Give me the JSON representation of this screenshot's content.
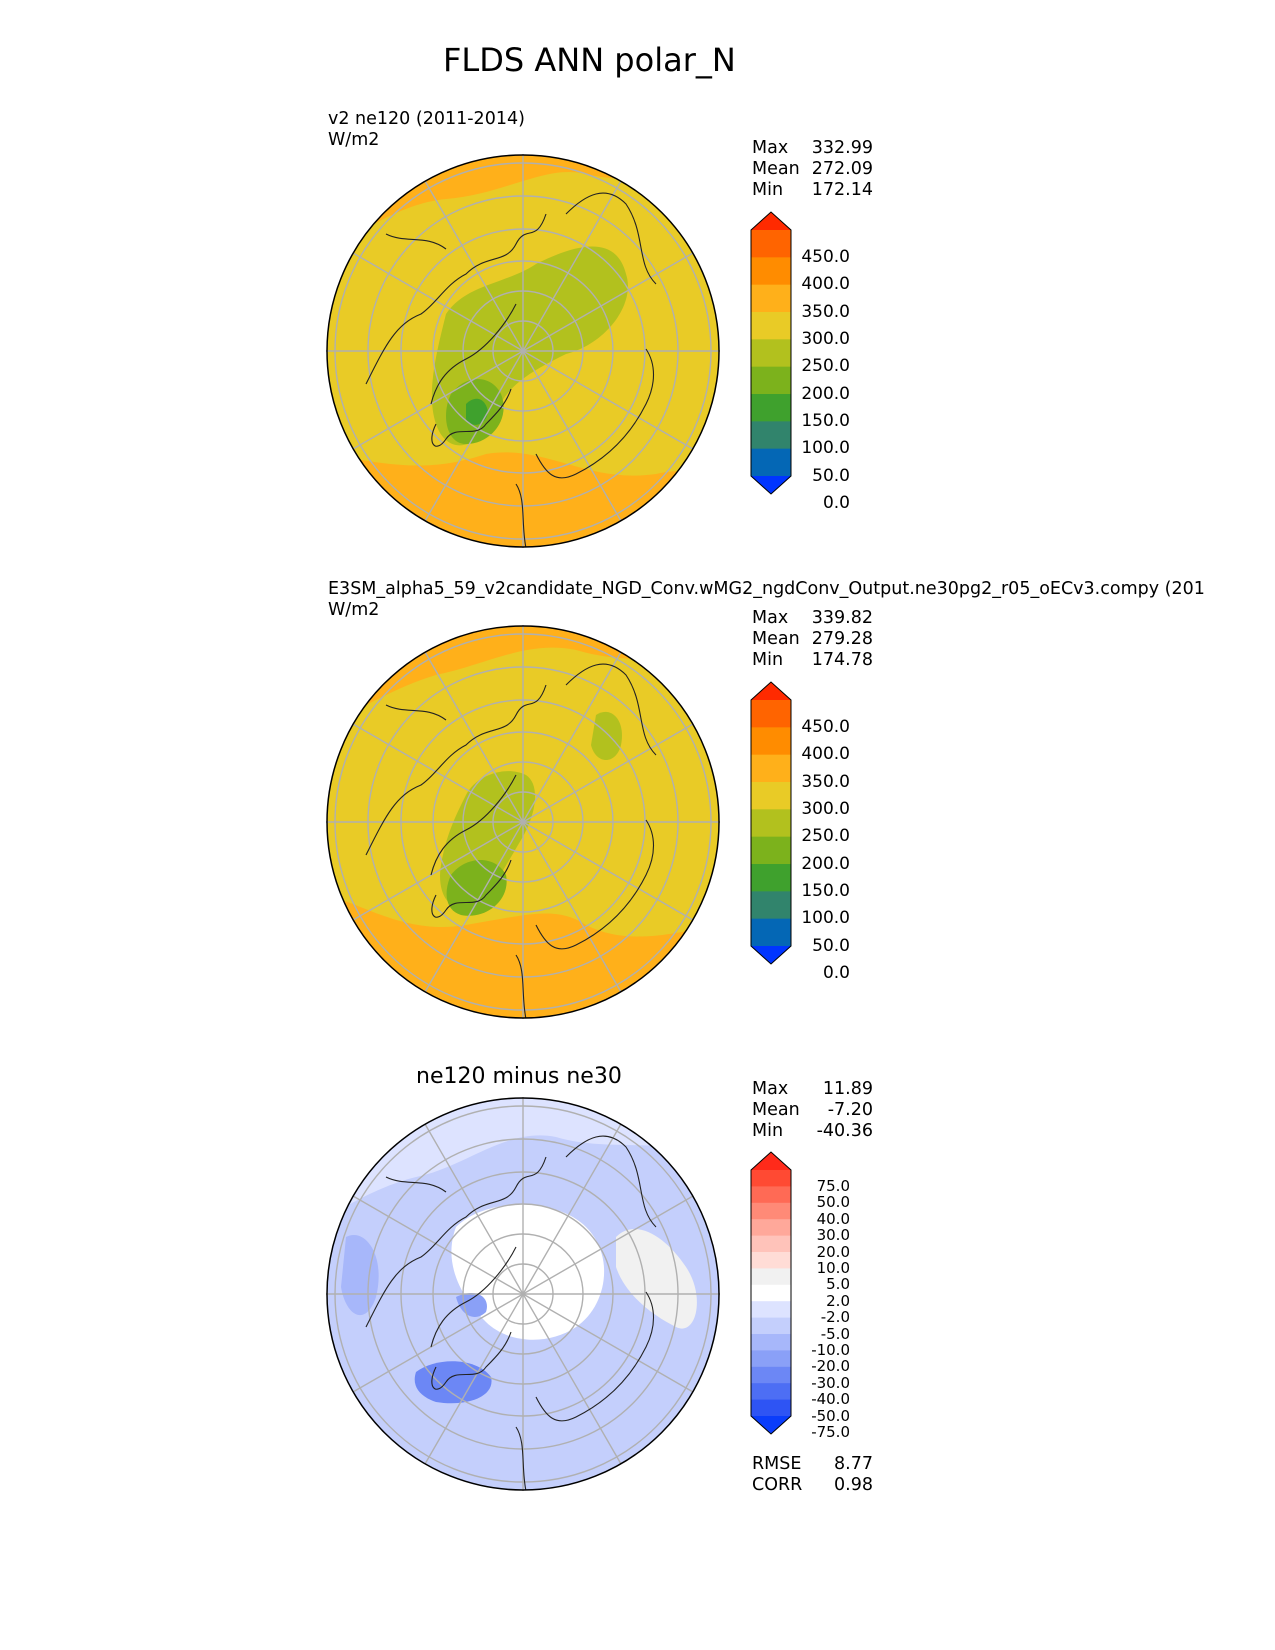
{
  "figure": {
    "title": "FLDS ANN polar_N"
  },
  "panels": [
    {
      "id": "test",
      "name_line": "v2 ne120 (2011-2014)",
      "units": "W/m2",
      "stats": [
        {
          "label": "Max",
          "value": "332.99"
        },
        {
          "label": "Mean",
          "value": "272.09"
        },
        {
          "label": "Min",
          "value": "172.14"
        }
      ],
      "colorbar": {
        "ticks": [
          "450.0",
          "400.0",
          "350.0",
          "300.0",
          "250.0",
          "200.0",
          "150.0",
          "100.0",
          "50.0",
          "0.0"
        ],
        "colors": [
          "#ff2a00",
          "#ff6400",
          "#ff8c00",
          "#ffb01a",
          "#e9cb26",
          "#b2c11e",
          "#7cb21c",
          "#3fa12d",
          "#31846c",
          "#0467b5",
          "#0035ff"
        ]
      }
    },
    {
      "id": "reference",
      "name_line": "E3SM_alpha5_59_v2candidate_NGD_Conv.wMG2_ngdConv_Output.ne30pg2_r05_oECv3.compy (201",
      "units": "W/m2",
      "stats": [
        {
          "label": "Max",
          "value": "339.82"
        },
        {
          "label": "Mean",
          "value": "279.28"
        },
        {
          "label": "Min",
          "value": "174.78"
        }
      ],
      "colorbar": {
        "ticks": [
          "450.0",
          "400.0",
          "350.0",
          "300.0",
          "250.0",
          "200.0",
          "150.0",
          "100.0",
          "50.0",
          "0.0"
        ],
        "colors": [
          "#ff2a00",
          "#ff6400",
          "#ff8c00",
          "#ffb01a",
          "#e9cb26",
          "#b2c11e",
          "#7cb21c",
          "#3fa12d",
          "#31846c",
          "#0467b5",
          "#0035ff"
        ]
      }
    },
    {
      "id": "difference",
      "subtitle": "ne120 minus ne30",
      "stats": [
        {
          "label": "Max",
          "value": "11.89"
        },
        {
          "label": "Mean",
          "value": "-7.20"
        },
        {
          "label": "Min",
          "value": "-40.36"
        }
      ],
      "extra_stats": [
        {
          "label": "RMSE",
          "value": "8.77"
        },
        {
          "label": "CORR",
          "value": "0.98"
        }
      ],
      "colorbar": {
        "ticks": [
          "75.0",
          "50.0",
          "40.0",
          "30.0",
          "20.0",
          "10.0",
          "5.0",
          "2.0",
          "-2.0",
          "-5.0",
          "-10.0",
          "-20.0",
          "-30.0",
          "-40.0",
          "-50.0",
          "-75.0"
        ],
        "colors": [
          "#ff2a1a",
          "#ff4a33",
          "#ff6a55",
          "#ff8a77",
          "#ffa89a",
          "#ffc3ba",
          "#ffdcd6",
          "#f1f1f1",
          "#ffffff",
          "#dde3ff",
          "#c4cffc",
          "#a7b7fa",
          "#8aa0f7",
          "#6c87f5",
          "#4d6ef4",
          "#2e54f4",
          "#0a3dfb"
        ]
      }
    }
  ],
  "colors": {
    "field_yellow": "#e9cb26",
    "field_orange": "#ffb01a",
    "field_olive": "#b2c11e",
    "field_green": "#7cb21c",
    "diff_white": "#ffffff",
    "diff_light_blue": "#c4cffc",
    "diff_blue": "#8aa0f7",
    "grid": "#b0b0b0",
    "coast": "#222222"
  }
}
